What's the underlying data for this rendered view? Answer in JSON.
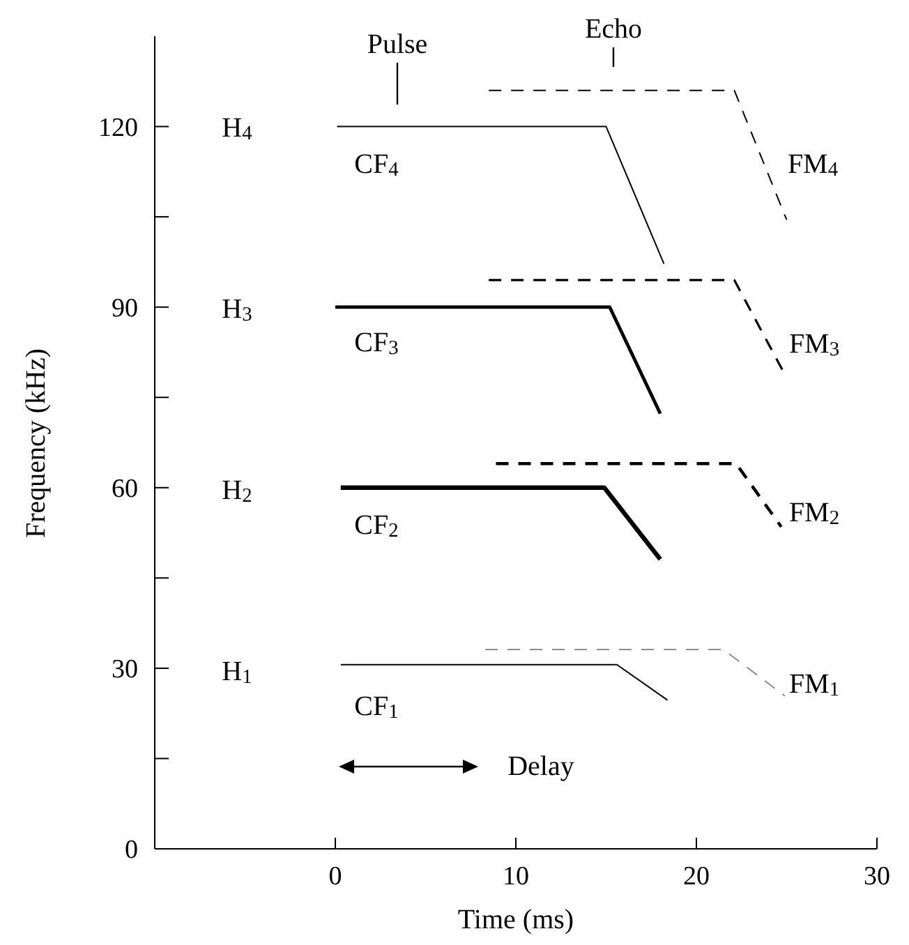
{
  "chart_data": {
    "type": "line",
    "xlabel": "Time (ms)",
    "ylabel": "Frequency (kHz)",
    "xlim": [
      -10,
      30
    ],
    "xticks": [
      0,
      10,
      20,
      30
    ],
    "ylim": [
      0,
      135
    ],
    "yticks": [
      0,
      {
        "value": 15,
        "label": null
      },
      30,
      {
        "value": 45,
        "label": null
      },
      60,
      {
        "value": 75,
        "label": null
      },
      90,
      {
        "value": 105,
        "label": null
      },
      120
    ],
    "grid": false,
    "marker": "none",
    "series": [
      {
        "type": "line",
        "color": "#000000",
        "line_style": "solid",
        "x": [
          0.3,
          15.6,
          18.4
        ],
        "values": [
          30.6,
          30.6,
          24.7
        ]
      },
      {
        "type": "line",
        "color": "#8c8c8c",
        "line_style": "dashed",
        "x": [
          8.3,
          21.5,
          24.9
        ],
        "values": [
          33.1,
          33.1,
          25.4
        ]
      },
      {
        "type": "line",
        "color": "#000000",
        "line_style": "solid",
        "x": [
          0.3,
          14.9,
          18
        ],
        "values": [
          60,
          60,
          48.1
        ]
      },
      {
        "type": "line",
        "color": "#000000",
        "line_style": "dashed",
        "x": [
          8.9,
          22.2,
          24.7
        ],
        "values": [
          64,
          64,
          53.5
        ]
      },
      {
        "type": "line",
        "color": "#000000",
        "line_style": "solid",
        "x": [
          0,
          15.2,
          18
        ],
        "values": [
          90,
          90,
          72.3
        ]
      },
      {
        "type": "line",
        "color": "#000000",
        "line_style": "dashed",
        "x": [
          8.5,
          22.1,
          24.9
        ],
        "values": [
          94.5,
          94.5,
          78.8
        ]
      },
      {
        "type": "line",
        "color": "#000000",
        "line_style": "solid",
        "x": [
          0.1,
          15,
          18.2
        ],
        "values": [
          120,
          120,
          97.2
        ]
      },
      {
        "type": "line",
        "color": "#000000",
        "line_style": "dashed",
        "x": [
          8.5,
          22.1,
          25
        ],
        "values": [
          126,
          126,
          104.5
        ]
      }
    ],
    "annotations": [
      "Pulse",
      "Echo",
      "Delay",
      "H$_{4}$",
      "H$_{3}$",
      "H$_{2}$",
      "H$_{1}$",
      "CF$_{4}$",
      "CF$_{3}$",
      "CF$_{2}$",
      "CF$_{1}$",
      "FM$_{4}$",
      "FM$_{3}$",
      "FM$_{2}$",
      "FM$_{1}$"
    ]
  }
}
